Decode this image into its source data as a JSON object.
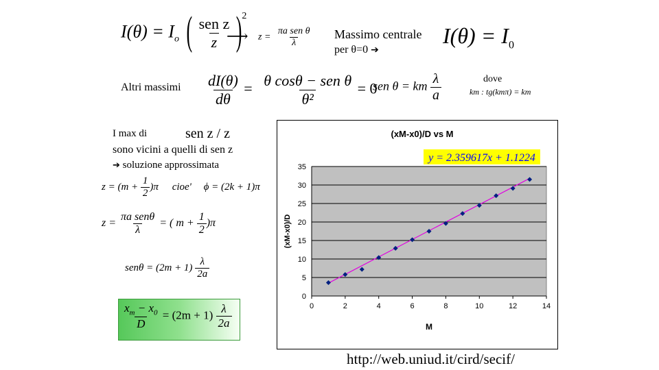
{
  "formulas": {
    "intensity_lhs": "I(θ) = I",
    "intensity_sub": "o",
    "intensity_frac_num": "sen z",
    "intensity_frac_den": "z",
    "intensity_exp": "2",
    "arrow": "⟶",
    "z_def_lhs": "z =",
    "z_def_num": "πa sen θ",
    "z_def_den": "λ",
    "central_max_label": "Massimo centrale",
    "central_max_sub": "per θ=0",
    "central_max_result": "I(θ) = I",
    "central_max_result_sub": "0",
    "other_max_label": "Altri massimi",
    "deriv_num": "dI(θ)",
    "deriv_den": "dθ",
    "deriv_eq": "=",
    "deriv_rhs_num": "θ cosθ − sen θ",
    "deriv_rhs_den": "θ²",
    "deriv_rhs_eq": "= 0",
    "sen_theta_lhs": "sen θ = km",
    "sen_theta_num": "λ",
    "sen_theta_den": "a",
    "dove_label": "dove",
    "km_condition": "km :   tg(kmπ) = km",
    "imax_line1": "I max di",
    "imax_func": "sen z / z",
    "imax_line2": "sono vicini a quelli di sen z",
    "imax_line3": "soluzione approssimata",
    "approx_z_lhs": "z = (m +",
    "approx_z_num": "1",
    "approx_z_den": "2",
    "approx_z_rhs": ")π",
    "cioe": "cioe'",
    "phi_eq": "ϕ = (2k + 1)π",
    "z_eq_lhs": "z =",
    "z_eq_num": "πa senθ",
    "z_eq_den": "λ",
    "z_eq_mid": "= ( m +",
    "z_eq_half_num": "1",
    "z_eq_half_den": "2",
    "z_eq_rhs": ")π",
    "sen_result_lhs": "senθ = (2m + 1)",
    "sen_result_num": "λ",
    "sen_result_den": "2a",
    "final_num": "x",
    "final_num_sub_m": "m",
    "final_num_minus": " − x",
    "final_num_sub_0": "0",
    "final_den": "D",
    "final_rhs": "= (2m + 1)",
    "final_rhs_num": "λ",
    "final_rhs_den": "2a"
  },
  "footer_url": "http://web.uniud.it/cird/secif/",
  "colors": {
    "trendline": "#e000e0",
    "marker": "#002080",
    "plot_bg": "#c0c0c0",
    "equation": "#0000ff",
    "box_green": "#56c85a"
  },
  "chart_data": {
    "type": "scatter",
    "title": "(xM-x0)/D vs M",
    "xlabel": "M",
    "ylabel": "(xM-x0)/D",
    "xlim": [
      0,
      14
    ],
    "ylim": [
      0,
      35
    ],
    "xticks": [
      "0",
      "2",
      "4",
      "6",
      "8",
      "10",
      "12",
      "14"
    ],
    "yticks": [
      "0",
      "5",
      "10",
      "15",
      "20",
      "25",
      "30",
      "35"
    ],
    "grid": "horizontal",
    "legend": "none",
    "equation": "y = 2.359617x + 1.1224",
    "trendline": {
      "slope": 2.359617,
      "intercept": 1.1224
    },
    "x": [
      1,
      2,
      3,
      4,
      5,
      6,
      7,
      8,
      9,
      10,
      11,
      12,
      13
    ],
    "y": [
      3.6,
      5.8,
      7.2,
      10.4,
      12.9,
      15.2,
      17.5,
      19.6,
      22.3,
      24.5,
      27.1,
      29.1,
      31.5
    ]
  }
}
